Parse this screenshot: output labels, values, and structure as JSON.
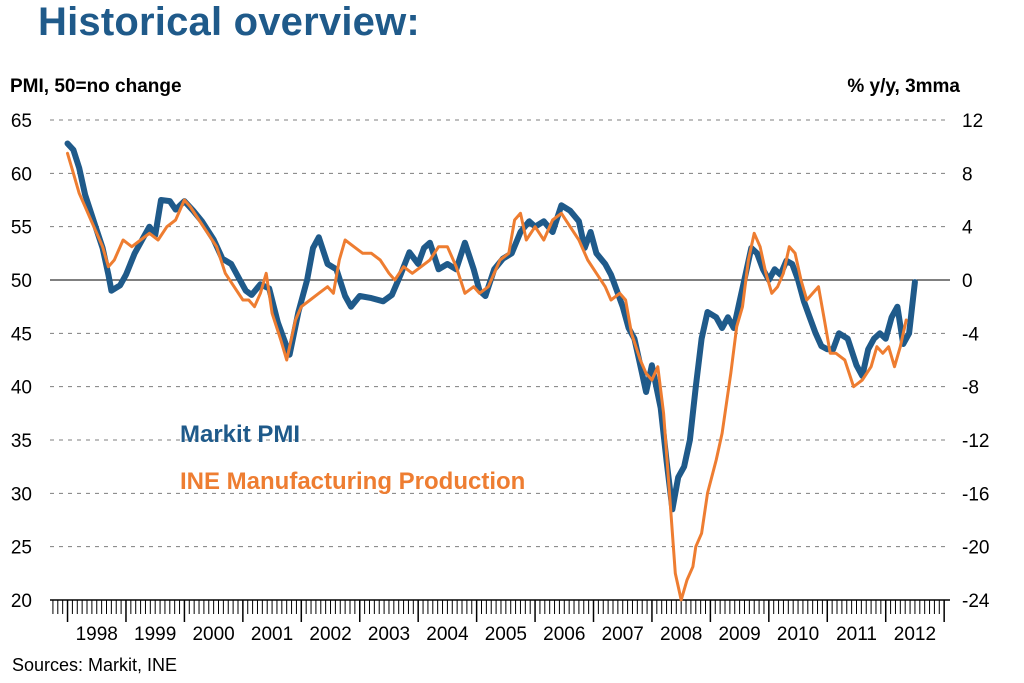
{
  "page": {
    "title": "Historical overview:",
    "source": "Sources: Markit, INE"
  },
  "chart_data": {
    "type": "line",
    "title": "Historical overview:",
    "ylabel_left": "PMI, 50=no change",
    "ylabel_right": "% y/y, 3mma",
    "x_ticks": [
      "1998",
      "1999",
      "2000",
      "2001",
      "2002",
      "2003",
      "2004",
      "2005",
      "2006",
      "2007",
      "2008",
      "2009",
      "2010",
      "2011",
      "2012"
    ],
    "ylim_left": [
      20,
      65
    ],
    "yticks_left": [
      65,
      60,
      55,
      50,
      45,
      40,
      35,
      30,
      25,
      20
    ],
    "ylim_right": [
      -24,
      12
    ],
    "yticks_right": [
      12,
      8,
      4,
      0,
      -4,
      -8,
      -12,
      -16,
      -20,
      -24
    ],
    "grid": "horizontal-dashed",
    "reference_line": {
      "axis": "left",
      "value": 50
    },
    "colors": {
      "pmi": "#1f5a8a",
      "production": "#ee7d31"
    },
    "series": [
      {
        "name": "Markit PMI",
        "axis": "left",
        "color": "#1f5a8a",
        "points": [
          [
            1998.0,
            62.8
          ],
          [
            1998.1,
            62.2
          ],
          [
            1998.2,
            60.5
          ],
          [
            1998.3,
            58.0
          ],
          [
            1998.45,
            55.5
          ],
          [
            1998.6,
            53.0
          ],
          [
            1998.7,
            50.5
          ],
          [
            1998.75,
            49.0
          ],
          [
            1998.9,
            49.5
          ],
          [
            1999.0,
            50.5
          ],
          [
            1999.15,
            52.5
          ],
          [
            1999.3,
            54.0
          ],
          [
            1999.4,
            55.0
          ],
          [
            1999.5,
            54.2
          ],
          [
            1999.6,
            57.5
          ],
          [
            1999.75,
            57.4
          ],
          [
            1999.85,
            56.6
          ],
          [
            2000.0,
            57.4
          ],
          [
            2000.15,
            56.5
          ],
          [
            2000.3,
            55.5
          ],
          [
            2000.5,
            53.8
          ],
          [
            2000.65,
            52.0
          ],
          [
            2000.8,
            51.5
          ],
          [
            2000.95,
            50.0
          ],
          [
            2001.05,
            49.0
          ],
          [
            2001.15,
            48.6
          ],
          [
            2001.3,
            49.6
          ],
          [
            2001.45,
            49.2
          ],
          [
            2001.6,
            46.0
          ],
          [
            2001.8,
            43.0
          ],
          [
            2001.95,
            47.0
          ],
          [
            2002.1,
            50.0
          ],
          [
            2002.2,
            53.0
          ],
          [
            2002.3,
            54.0
          ],
          [
            2002.45,
            51.5
          ],
          [
            2002.6,
            51.0
          ],
          [
            2002.75,
            48.5
          ],
          [
            2002.85,
            47.5
          ],
          [
            2003.0,
            48.5
          ],
          [
            2003.2,
            48.3
          ],
          [
            2003.4,
            48.0
          ],
          [
            2003.55,
            48.6
          ],
          [
            2003.7,
            50.5
          ],
          [
            2003.85,
            52.6
          ],
          [
            2004.0,
            51.5
          ],
          [
            2004.1,
            53.0
          ],
          [
            2004.2,
            53.5
          ],
          [
            2004.35,
            51.0
          ],
          [
            2004.5,
            51.5
          ],
          [
            2004.65,
            51.0
          ],
          [
            2004.8,
            53.5
          ],
          [
            2004.95,
            51.0
          ],
          [
            2005.05,
            49.0
          ],
          [
            2005.15,
            48.5
          ],
          [
            2005.3,
            51.0
          ],
          [
            2005.45,
            52.0
          ],
          [
            2005.6,
            52.5
          ],
          [
            2005.75,
            54.5
          ],
          [
            2005.9,
            55.5
          ],
          [
            2006.0,
            55.0
          ],
          [
            2006.15,
            55.5
          ],
          [
            2006.3,
            54.5
          ],
          [
            2006.45,
            57.0
          ],
          [
            2006.6,
            56.5
          ],
          [
            2006.75,
            55.5
          ],
          [
            2006.85,
            53.0
          ],
          [
            2006.95,
            54.5
          ],
          [
            2007.05,
            52.5
          ],
          [
            2007.2,
            51.5
          ],
          [
            2007.3,
            50.5
          ],
          [
            2007.4,
            49.0
          ],
          [
            2007.5,
            47.5
          ],
          [
            2007.6,
            45.5
          ],
          [
            2007.7,
            44.5
          ],
          [
            2007.8,
            42.0
          ],
          [
            2007.9,
            39.5
          ],
          [
            2008.0,
            42.0
          ],
          [
            2008.15,
            38.0
          ],
          [
            2008.25,
            33.0
          ],
          [
            2008.35,
            28.5
          ],
          [
            2008.45,
            31.5
          ],
          [
            2008.55,
            32.5
          ],
          [
            2008.65,
            35.0
          ],
          [
            2008.75,
            40.0
          ],
          [
            2008.85,
            44.5
          ],
          [
            2008.95,
            47.0
          ],
          [
            2009.1,
            46.5
          ],
          [
            2009.2,
            45.5
          ],
          [
            2009.3,
            46.5
          ],
          [
            2009.4,
            45.5
          ],
          [
            2009.5,
            48.0
          ],
          [
            2009.6,
            50.5
          ],
          [
            2009.7,
            53.0
          ],
          [
            2009.8,
            52.5
          ],
          [
            2009.9,
            51.0
          ],
          [
            2010.0,
            50.0
          ],
          [
            2010.1,
            51.0
          ],
          [
            2010.2,
            50.5
          ],
          [
            2010.3,
            51.8
          ],
          [
            2010.4,
            51.5
          ],
          [
            2010.5,
            50.0
          ],
          [
            2010.6,
            48.0
          ],
          [
            2010.7,
            46.5
          ],
          [
            2010.8,
            45.0
          ],
          [
            2010.9,
            43.8
          ],
          [
            2011.0,
            43.5
          ],
          [
            2011.1,
            43.5
          ],
          [
            2011.2,
            45.0
          ],
          [
            2011.35,
            44.5
          ],
          [
            2011.5,
            42.0
          ],
          [
            2011.6,
            41.0
          ],
          [
            2011.7,
            43.5
          ],
          [
            2011.8,
            44.5
          ],
          [
            2011.9,
            45.0
          ],
          [
            2012.0,
            44.5
          ],
          [
            2012.1,
            46.5
          ],
          [
            2012.2,
            47.5
          ],
          [
            2012.3,
            44.0
          ],
          [
            2012.4,
            45.0
          ],
          [
            2012.5,
            49.8
          ]
        ]
      },
      {
        "name": "INE Manufacturing Production",
        "axis": "right",
        "color": "#ee7d31",
        "points": [
          [
            1998.0,
            9.5
          ],
          [
            1998.1,
            8.0
          ],
          [
            1998.2,
            6.5
          ],
          [
            1998.3,
            5.5
          ],
          [
            1998.4,
            4.5
          ],
          [
            1998.5,
            3.5
          ],
          [
            1998.6,
            2.5
          ],
          [
            1998.7,
            1.0
          ],
          [
            1998.8,
            1.5
          ],
          [
            1998.95,
            3.0
          ],
          [
            1999.1,
            2.5
          ],
          [
            1999.25,
            3.0
          ],
          [
            1999.4,
            3.5
          ],
          [
            1999.55,
            3.0
          ],
          [
            1999.7,
            4.0
          ],
          [
            1999.85,
            4.5
          ],
          [
            2000.0,
            6.0
          ],
          [
            2000.1,
            5.5
          ],
          [
            2000.25,
            4.5
          ],
          [
            2000.4,
            3.5
          ],
          [
            2000.55,
            2.5
          ],
          [
            2000.7,
            0.5
          ],
          [
            2000.85,
            -0.5
          ],
          [
            2001.0,
            -1.5
          ],
          [
            2001.1,
            -1.5
          ],
          [
            2001.2,
            -2.0
          ],
          [
            2001.3,
            -1.0
          ],
          [
            2001.4,
            0.5
          ],
          [
            2001.5,
            -2.5
          ],
          [
            2001.65,
            -4.5
          ],
          [
            2001.75,
            -6.0
          ],
          [
            2001.9,
            -3.0
          ],
          [
            2002.0,
            -2.0
          ],
          [
            2002.15,
            -1.5
          ],
          [
            2002.3,
            -1.0
          ],
          [
            2002.45,
            -0.5
          ],
          [
            2002.55,
            -1.0
          ],
          [
            2002.65,
            1.5
          ],
          [
            2002.75,
            3.0
          ],
          [
            2002.9,
            2.5
          ],
          [
            2003.05,
            2.0
          ],
          [
            2003.2,
            2.0
          ],
          [
            2003.35,
            1.5
          ],
          [
            2003.5,
            0.5
          ],
          [
            2003.6,
            0.0
          ],
          [
            2003.75,
            1.0
          ],
          [
            2003.9,
            0.5
          ],
          [
            2004.05,
            1.0
          ],
          [
            2004.2,
            1.5
          ],
          [
            2004.35,
            2.5
          ],
          [
            2004.5,
            2.5
          ],
          [
            2004.65,
            1.0
          ],
          [
            2004.8,
            -1.0
          ],
          [
            2004.95,
            -0.5
          ],
          [
            2005.05,
            -1.0
          ],
          [
            2005.2,
            -0.5
          ],
          [
            2005.4,
            1.5
          ],
          [
            2005.55,
            2.0
          ],
          [
            2005.65,
            4.5
          ],
          [
            2005.75,
            5.0
          ],
          [
            2005.85,
            3.0
          ],
          [
            2006.0,
            4.0
          ],
          [
            2006.15,
            3.0
          ],
          [
            2006.3,
            4.5
          ],
          [
            2006.45,
            5.0
          ],
          [
            2006.6,
            4.0
          ],
          [
            2006.75,
            3.0
          ],
          [
            2006.9,
            1.5
          ],
          [
            2007.05,
            0.5
          ],
          [
            2007.2,
            -0.5
          ],
          [
            2007.3,
            -1.5
          ],
          [
            2007.45,
            -1.0
          ],
          [
            2007.55,
            -1.5
          ],
          [
            2007.65,
            -4.0
          ],
          [
            2007.8,
            -6.0
          ],
          [
            2007.9,
            -7.0
          ],
          [
            2008.0,
            -7.5
          ],
          [
            2008.1,
            -6.5
          ],
          [
            2008.2,
            -10.0
          ],
          [
            2008.3,
            -16.0
          ],
          [
            2008.4,
            -22.0
          ],
          [
            2008.5,
            -24.0
          ],
          [
            2008.6,
            -22.5
          ],
          [
            2008.7,
            -21.5
          ],
          [
            2008.75,
            -20.0
          ],
          [
            2008.85,
            -19.0
          ],
          [
            2008.95,
            -16.0
          ],
          [
            2009.1,
            -13.5
          ],
          [
            2009.2,
            -11.5
          ],
          [
            2009.35,
            -7.0
          ],
          [
            2009.45,
            -3.5
          ],
          [
            2009.55,
            -2.0
          ],
          [
            2009.65,
            1.5
          ],
          [
            2009.75,
            3.5
          ],
          [
            2009.85,
            2.5
          ],
          [
            2009.95,
            0.5
          ],
          [
            2010.05,
            -1.0
          ],
          [
            2010.15,
            -0.5
          ],
          [
            2010.25,
            0.5
          ],
          [
            2010.35,
            2.5
          ],
          [
            2010.45,
            2.0
          ],
          [
            2010.55,
            0.0
          ],
          [
            2010.65,
            -1.5
          ],
          [
            2010.75,
            -1.0
          ],
          [
            2010.85,
            -0.5
          ],
          [
            2010.95,
            -3.0
          ],
          [
            2011.05,
            -5.5
          ],
          [
            2011.15,
            -5.5
          ],
          [
            2011.3,
            -6.0
          ],
          [
            2011.45,
            -8.0
          ],
          [
            2011.6,
            -7.5
          ],
          [
            2011.75,
            -6.5
          ],
          [
            2011.85,
            -5.0
          ],
          [
            2011.95,
            -5.5
          ],
          [
            2012.05,
            -5.0
          ],
          [
            2012.15,
            -6.5
          ],
          [
            2012.25,
            -5.0
          ],
          [
            2012.35,
            -3.0
          ]
        ]
      }
    ],
    "legend": [
      {
        "label": "Markit PMI",
        "color": "#1f5a8a"
      },
      {
        "label": "INE Manufacturing Production",
        "color": "#ee7d31"
      }
    ]
  }
}
